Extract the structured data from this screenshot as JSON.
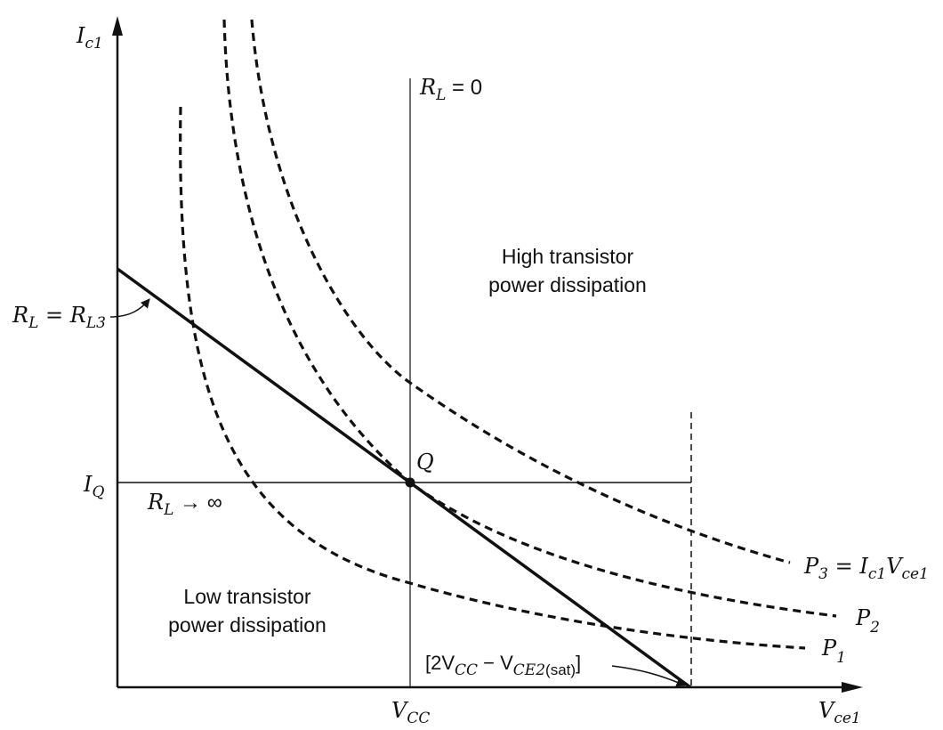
{
  "axes": {
    "y_label": {
      "main": "I",
      "sub": "c1"
    },
    "x_label": {
      "main": "V",
      "sub": "ce1"
    },
    "x_tick": {
      "main": "V",
      "sub": "CC"
    },
    "y_tick": {
      "main": "I",
      "sub": "Q"
    }
  },
  "lines": {
    "rl_zero": {
      "main": "R",
      "sub": "L",
      "rest": " = 0"
    },
    "rl_inf": {
      "main": "R",
      "sub": "L",
      "rest": " → ∞"
    },
    "rl3": {
      "main": "R",
      "sub": "L",
      "mid": " = R",
      "sub2": "L3"
    },
    "vmax": {
      "pre": "[2V",
      "sub": "CC",
      "mid": " − V",
      "sub2": "CE2",
      "sub3": "(sat)",
      "post": "]"
    }
  },
  "point": {
    "q": "Q"
  },
  "curves": {
    "p3": {
      "main": "P",
      "sub": "3",
      "eq": " = I",
      "sub2": "c1",
      "v": "V",
      "sub3": "ce1"
    },
    "p2": {
      "main": "P",
      "sub": "2"
    },
    "p1": {
      "main": "P",
      "sub": "1"
    }
  },
  "regions": {
    "high": [
      "High transistor",
      "power dissipation"
    ],
    "low": [
      "Low transistor",
      "power dissipation"
    ]
  },
  "style": {
    "ink": "#111111",
    "background": "#ffffff"
  }
}
